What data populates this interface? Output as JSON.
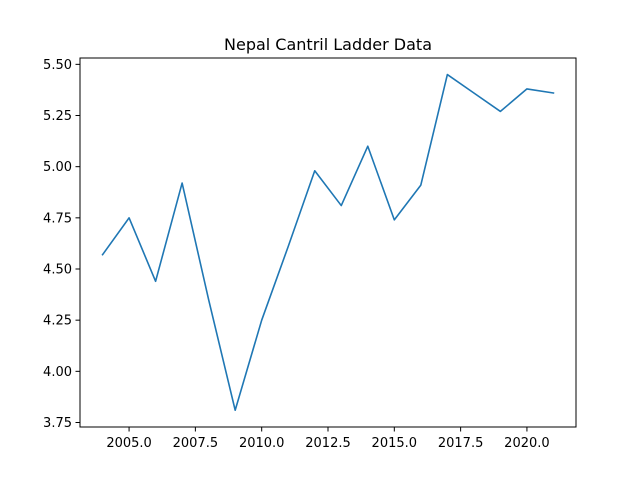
{
  "chart_data": {
    "type": "line",
    "title": "Nepal Cantril Ladder Data",
    "xlabel": "",
    "ylabel": "",
    "xlim": [
      2003.15,
      2021.85
    ],
    "ylim": [
      3.728,
      5.531
    ],
    "xticks": [
      2005.0,
      2007.5,
      2010.0,
      2012.5,
      2015.0,
      2017.5,
      2020.0
    ],
    "xtick_labels": [
      "2005.0",
      "2007.5",
      "2010.0",
      "2012.5",
      "2015.0",
      "2017.5",
      "2020.0"
    ],
    "yticks": [
      3.75,
      4.0,
      4.25,
      4.5,
      4.75,
      5.0,
      5.25,
      5.5
    ],
    "ytick_labels": [
      "3.75",
      "4.00",
      "4.25",
      "4.50",
      "4.75",
      "5.00",
      "5.25",
      "5.50"
    ],
    "grid": false,
    "legend": "none",
    "line_color": "#1f77b4",
    "series": [
      {
        "x": [
          2004,
          2005,
          2006,
          2007,
          2008,
          2009,
          2010,
          2011,
          2012,
          2013,
          2014,
          2015,
          2016,
          2017,
          2018,
          2019,
          2020,
          2021
        ],
        "values": [
          4.57,
          4.75,
          4.44,
          4.92,
          4.35,
          3.81,
          4.25,
          4.61,
          4.98,
          4.81,
          5.1,
          4.74,
          4.91,
          5.45,
          5.36,
          5.27,
          5.38,
          5.36
        ]
      }
    ]
  }
}
